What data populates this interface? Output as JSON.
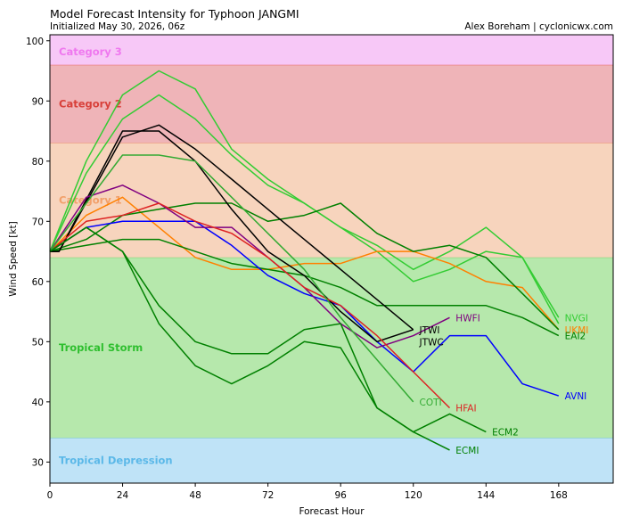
{
  "header": {
    "title": "Model Forecast Intensity for Typhoon JANGMI",
    "subtitle": "Initialized May 30, 2026, 06z",
    "credit": "Alex Boreham | cyclonicwx.com"
  },
  "chart_data": {
    "type": "line",
    "title": "Model Forecast Intensity for Typhoon JANGMI",
    "subtitle": "Initialized May 30, 2026, 06z",
    "xlabel": "Forecast Hour",
    "ylabel": "Wind Speed [kt]",
    "xlim": [
      0,
      186
    ],
    "ylim": [
      26.5,
      101
    ],
    "xticks": [
      0,
      24,
      48,
      72,
      96,
      120,
      144,
      168
    ],
    "yticks": [
      30,
      40,
      50,
      60,
      70,
      80,
      90,
      100
    ],
    "grid": false,
    "bands": [
      {
        "name": "Tropical Depression",
        "from": 26.5,
        "to": 34,
        "fill": "#bfe3f7",
        "edge": "#78c2ec",
        "label_color": "#5bb8e8",
        "label_y": 30.3
      },
      {
        "name": "Tropical Storm",
        "from": 34,
        "to": 64,
        "fill": "#b6e8ac",
        "edge": "#6fcf60",
        "label_color": "#2fbf2f",
        "label_y": 49
      },
      {
        "name": "Category 1",
        "from": 64,
        "to": 83,
        "fill": "#f7d4bd",
        "edge": "#f2a06a",
        "label_color": "#f2a06a",
        "label_y": 73.5
      },
      {
        "name": "Category 2",
        "from": 83,
        "to": 96,
        "fill": "#efb4b8",
        "edge": "#e8605c",
        "label_color": "#d8403a",
        "label_y": 89.5
      },
      {
        "name": "Category 3",
        "from": 96,
        "to": 101,
        "fill": "#f7c8f7",
        "edge": "#e890e8",
        "label_color": "#ef78ef",
        "label_y": 98.2
      }
    ],
    "series": [
      {
        "name": "NVGI",
        "color": "#33cc33",
        "x": [
          0,
          12,
          24,
          36,
          48,
          60,
          72,
          84,
          96,
          108,
          120,
          132,
          144,
          156,
          168
        ],
        "y": [
          65,
          80,
          91,
          95,
          92,
          82,
          77,
          73,
          69,
          65,
          60,
          62,
          65,
          64,
          54
        ],
        "label_x": 170,
        "label_y": 54
      },
      {
        "name": "",
        "color": "#33cc33",
        "x": [
          0,
          12,
          24,
          36,
          48,
          60,
          72,
          84,
          96,
          108,
          120,
          132,
          144,
          156,
          168
        ],
        "y": [
          65,
          78,
          87,
          91,
          87,
          81,
          76,
          73,
          69,
          66,
          62,
          65,
          69,
          64,
          53
        ]
      },
      {
        "name": "UKMI",
        "color": "#ff8000",
        "x": [
          0,
          12,
          24,
          36,
          48,
          60,
          72,
          84,
          96,
          108,
          120,
          132,
          144,
          156,
          168
        ],
        "y": [
          65,
          71,
          74,
          69,
          64,
          62,
          62,
          63,
          63,
          65,
          65,
          63,
          60,
          59,
          52
        ],
        "label_x": 170,
        "label_y": 52
      },
      {
        "name": "",
        "color": "#008000",
        "x": [
          0,
          12,
          24,
          36,
          48,
          60,
          72,
          84,
          96,
          108,
          120,
          132,
          144,
          156,
          168
        ],
        "y": [
          65,
          67,
          71,
          72,
          73,
          73,
          70,
          71,
          73,
          68,
          65,
          66,
          64,
          58,
          52
        ]
      },
      {
        "name": "EAI2",
        "color": "#008000",
        "x": [
          0,
          12,
          24,
          36,
          48,
          60,
          72,
          84,
          96,
          108,
          120,
          132,
          144,
          156,
          168
        ],
        "y": [
          65,
          66,
          67,
          67,
          65,
          63,
          62,
          61,
          59,
          56,
          56,
          56,
          56,
          54,
          51
        ],
        "label_x": 170,
        "label_y": 51
      },
      {
        "name": "AVNI",
        "color": "#0000ff",
        "x": [
          0,
          12,
          24,
          36,
          48,
          60,
          72,
          84,
          96,
          108,
          120,
          132,
          144,
          156,
          168
        ],
        "y": [
          65,
          69,
          70,
          70,
          70,
          66,
          61,
          58,
          56,
          50,
          45,
          51,
          51,
          43,
          41
        ],
        "label_x": 170,
        "label_y": 41
      },
      {
        "name": "JTWI",
        "color": "#000000",
        "x": [
          0,
          3,
          24,
          36,
          48,
          60,
          72,
          84,
          96,
          108,
          120
        ],
        "y": [
          65,
          65,
          85,
          85,
          80,
          72,
          65,
          61,
          55,
          50,
          52
        ],
        "label_x": 122,
        "label_y": 52
      },
      {
        "name": "JTWC",
        "color": "#000000",
        "x": [
          0,
          3,
          24,
          36,
          48,
          60,
          72,
          84,
          96,
          108,
          120
        ],
        "y": [
          65,
          65,
          84,
          86,
          82,
          77,
          72,
          67,
          62,
          57,
          52
        ],
        "label_x": 122,
        "label_y": 50
      },
      {
        "name": "HWFI",
        "color": "#800080",
        "x": [
          0,
          12,
          24,
          36,
          48,
          60,
          72,
          84,
          96,
          108,
          120,
          132
        ],
        "y": [
          65,
          74,
          76,
          73,
          69,
          69,
          64,
          59,
          53,
          49,
          51,
          54
        ],
        "label_x": 134,
        "label_y": 54
      },
      {
        "name": "HFAI",
        "color": "#dd2222",
        "x": [
          0,
          12,
          24,
          36,
          48,
          60,
          72,
          84,
          96,
          108,
          120,
          132
        ],
        "y": [
          65,
          70,
          71,
          73,
          70,
          68,
          64,
          59,
          56,
          51,
          45,
          39
        ],
        "label_x": 134,
        "label_y": 39
      },
      {
        "name": "COTI",
        "color": "#33aa33",
        "x": [
          0,
          12,
          24,
          36,
          48,
          60,
          72,
          84,
          96,
          108,
          120
        ],
        "y": [
          65,
          73,
          81,
          81,
          80,
          74,
          68,
          62,
          54,
          47,
          40
        ],
        "label_x": 122,
        "label_y": 40
      },
      {
        "name": "ECM2",
        "color": "#008000",
        "x": [
          0,
          12,
          24,
          36,
          48,
          60,
          72,
          84,
          96,
          108,
          120,
          132,
          144
        ],
        "y": [
          65,
          69,
          65,
          53,
          46,
          43,
          46,
          50,
          49,
          39,
          35,
          38,
          35
        ],
        "label_x": 146,
        "label_y": 35
      },
      {
        "name": "ECMI",
        "color": "#008000",
        "x": [
          0,
          12,
          24,
          36,
          48,
          60,
          72,
          84,
          96,
          108,
          120,
          132
        ],
        "y": [
          65,
          69,
          65,
          56,
          50,
          48,
          48,
          52,
          53,
          39,
          35,
          32
        ],
        "label_x": 134,
        "label_y": 32
      }
    ]
  }
}
